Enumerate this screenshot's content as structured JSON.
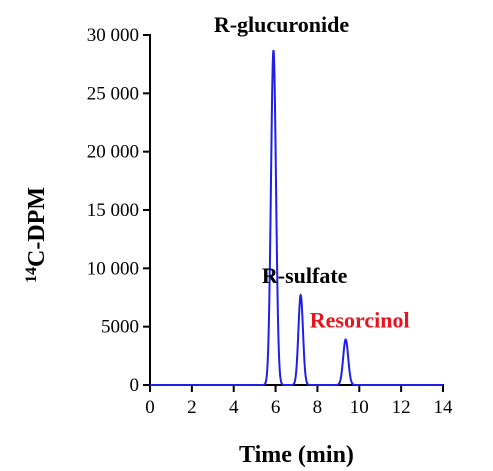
{
  "chart_data": {
    "type": "line",
    "xlabel": "Time (min)",
    "ylabel_super": "14",
    "ylabel_main": "C-DPM",
    "xlim": [
      0,
      14
    ],
    "ylim": [
      0,
      30000
    ],
    "x_ticks": [
      0,
      2,
      4,
      6,
      8,
      10,
      12,
      14
    ],
    "x_tick_labels": [
      "0",
      "2",
      "4",
      "6",
      "8",
      "10",
      "12",
      "14"
    ],
    "y_ticks": [
      0,
      5000,
      10000,
      15000,
      20000,
      25000,
      30000
    ],
    "y_tick_labels": [
      "0",
      "5000",
      "10 000",
      "15 000",
      "20 000",
      "25 000",
      "30 000"
    ],
    "series": [
      {
        "color": "#1f1fe8",
        "peaks": [
          {
            "center": 5.9,
            "height": 28700,
            "width": 0.12
          },
          {
            "center": 7.2,
            "height": 7700,
            "width": 0.11
          },
          {
            "center": 9.35,
            "height": 3900,
            "width": 0.12
          }
        ]
      }
    ],
    "annotations": [
      {
        "text": "R-glucuronide",
        "x": 5.9,
        "y": 28700,
        "color": "#000000"
      },
      {
        "text": "R-sulfate",
        "x": 7.2,
        "y": 7700,
        "color": "#000000"
      },
      {
        "text": "Resorcinol",
        "x": 9.35,
        "y": 3900,
        "color": "#e8131b"
      }
    ],
    "grid": false
  }
}
